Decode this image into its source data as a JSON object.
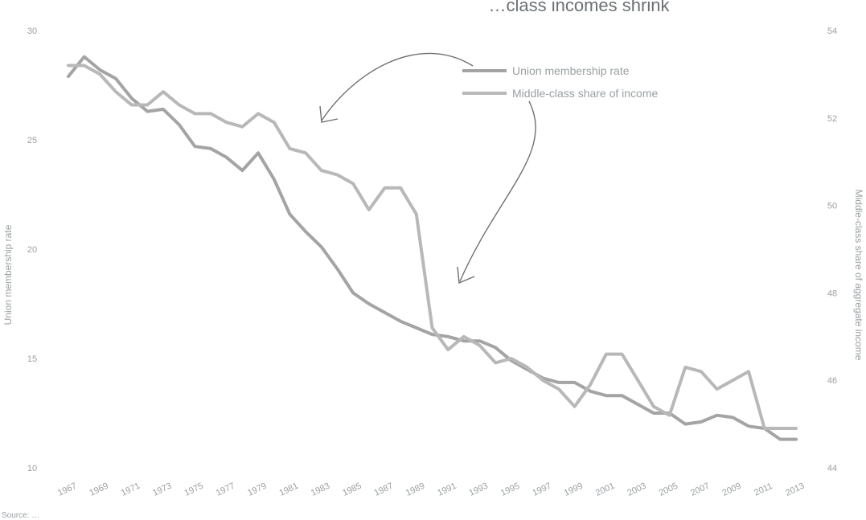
{
  "chart_data": {
    "type": "line",
    "title": "…class incomes shrink",
    "ylabel_left": "Union membership rate",
    "ylabel_right": "Middle-class share of aggregate income",
    "source": "Source: …",
    "ylim_left": [
      10,
      30
    ],
    "ylim_right": [
      44,
      54
    ],
    "yticks_left": [
      "10",
      "15",
      "20",
      "25",
      "30"
    ],
    "yticks_right": [
      "44",
      "46",
      "48",
      "50",
      "52",
      "54"
    ],
    "x": [
      1967,
      1968,
      1969,
      1970,
      1971,
      1972,
      1973,
      1974,
      1975,
      1976,
      1977,
      1978,
      1979,
      1980,
      1981,
      1982,
      1983,
      1984,
      1985,
      1986,
      1987,
      1988,
      1989,
      1990,
      1991,
      1992,
      1993,
      1994,
      1995,
      1996,
      1997,
      1998,
      1999,
      2000,
      2001,
      2002,
      2003,
      2004,
      2005,
      2006,
      2007,
      2008,
      2009,
      2010,
      2011,
      2012,
      2013
    ],
    "xtick_labels": [
      "1967",
      "1969",
      "1971",
      "1973",
      "1975",
      "1977",
      "1979",
      "1981",
      "1983",
      "1985",
      "1987",
      "1989",
      "1991",
      "1993",
      "1995",
      "1997",
      "1999",
      "2001",
      "2003",
      "2005",
      "2007",
      "2009",
      "2011",
      "2013"
    ],
    "series": [
      {
        "name": "Union membership rate",
        "axis": "left",
        "color": "#a4a4a4",
        "values": [
          27.9,
          28.8,
          28.2,
          27.8,
          26.9,
          26.3,
          26.4,
          25.7,
          24.7,
          24.6,
          24.2,
          23.6,
          24.4,
          23.2,
          21.6,
          20.8,
          20.1,
          19.1,
          18.0,
          17.5,
          17.1,
          16.7,
          16.4,
          16.1,
          16.0,
          15.8,
          15.8,
          15.5,
          14.9,
          14.5,
          14.1,
          13.9,
          13.9,
          13.5,
          13.3,
          13.3,
          12.9,
          12.5,
          12.5,
          12.0,
          12.1,
          12.4,
          12.3,
          11.9,
          11.8,
          11.3,
          11.3
        ]
      },
      {
        "name": "Middle-class share of income",
        "axis": "right",
        "color": "#b8b8b8",
        "values": [
          53.2,
          53.2,
          53.0,
          52.6,
          52.3,
          52.3,
          52.6,
          52.3,
          52.1,
          52.1,
          51.9,
          51.8,
          52.1,
          51.9,
          51.3,
          51.2,
          50.8,
          50.7,
          50.5,
          49.9,
          50.4,
          50.4,
          49.8,
          47.2,
          46.7,
          47.0,
          46.8,
          46.4,
          46.5,
          46.3,
          46.0,
          45.8,
          45.4,
          45.9,
          46.6,
          46.6,
          46.0,
          45.4,
          45.2,
          46.3,
          46.2,
          45.8,
          46.0,
          46.2,
          44.9,
          44.9,
          44.9
        ]
      }
    ],
    "legend": [
      "Union membership rate",
      "Middle-class share of income"
    ],
    "legend_position": "top-right",
    "grid": false
  }
}
